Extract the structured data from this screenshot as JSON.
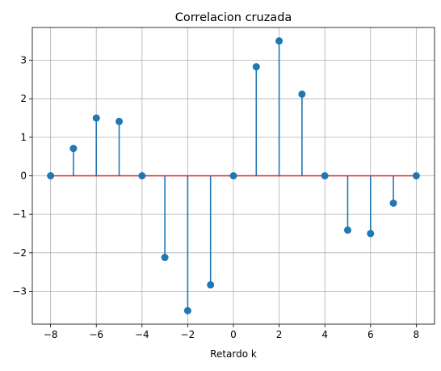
{
  "chart_data": {
    "type": "stem",
    "title": "Correlacion cruzada",
    "xlabel": "Retardo k",
    "ylabel": "",
    "x": [
      -8,
      -7,
      -6,
      -5,
      -4,
      -3,
      -2,
      -1,
      0,
      1,
      2,
      3,
      4,
      5,
      6,
      7,
      8
    ],
    "values": [
      0,
      0.71,
      1.5,
      1.41,
      0,
      -2.12,
      -3.5,
      -2.83,
      0,
      2.83,
      3.5,
      2.12,
      0,
      -1.41,
      -1.5,
      -0.71,
      0
    ],
    "xlim": [
      -8.8,
      8.8
    ],
    "ylim": [
      -3.85,
      3.85
    ],
    "xticks": [
      -8,
      -6,
      -4,
      -2,
      0,
      2,
      4,
      6,
      8
    ],
    "xtick_labels": [
      "−8",
      "−6",
      "−4",
      "−2",
      "0",
      "2",
      "4",
      "6",
      "8"
    ],
    "yticks": [
      -3,
      -2,
      -1,
      0,
      1,
      2,
      3
    ],
    "ytick_labels": [
      "−3",
      "−2",
      "−1",
      "0",
      "1",
      "2",
      "3"
    ],
    "grid": true,
    "colors": {
      "stem": "#1f77b4",
      "marker": "#1f77b4",
      "baseline": "#d62728",
      "grid": "#b0b0b0"
    }
  }
}
